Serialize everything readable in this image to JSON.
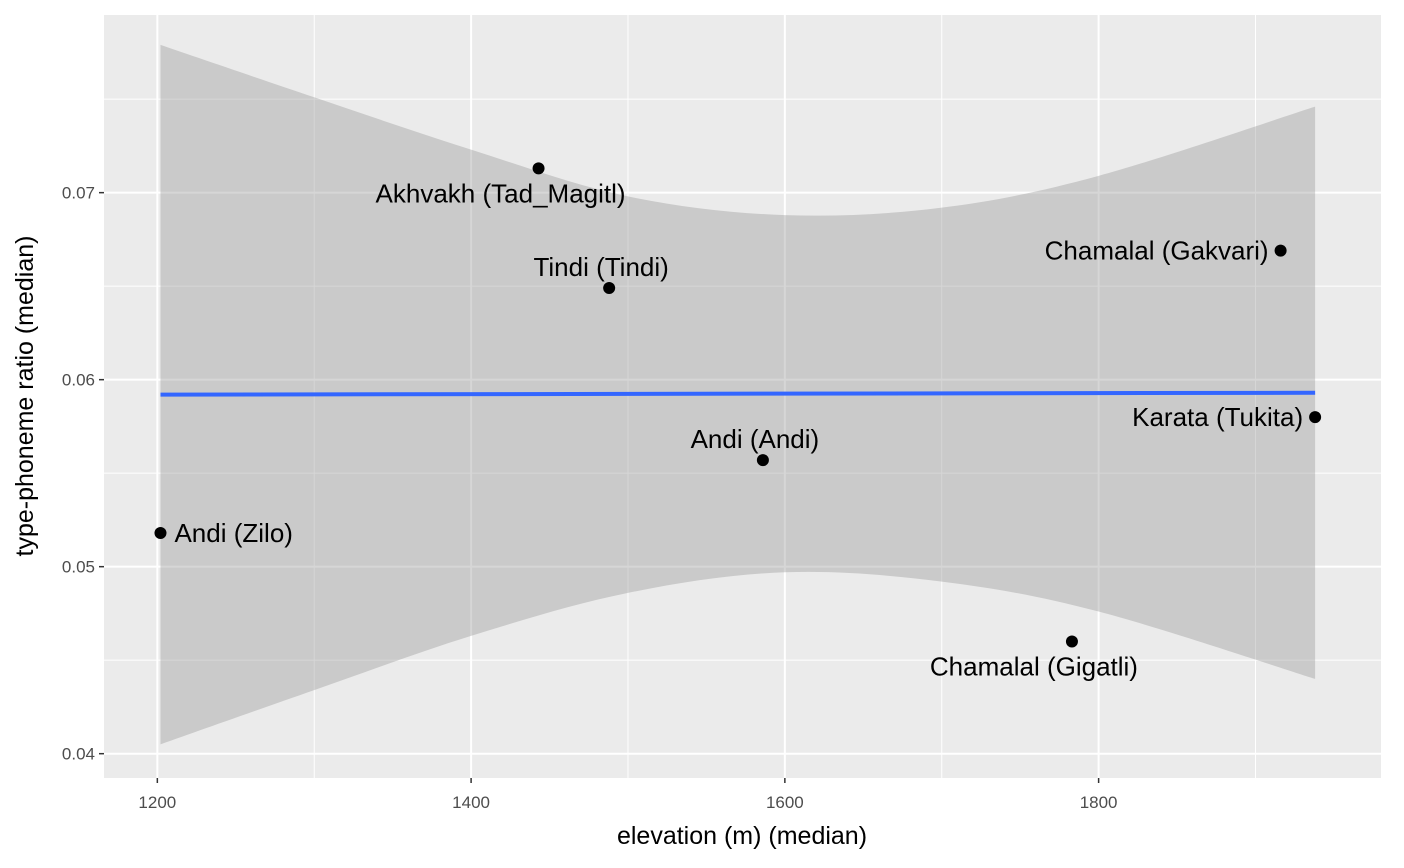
{
  "chart_data": {
    "type": "scatter",
    "xlabel": "elevation (m) (median)",
    "ylabel": "type-phoneme ratio (median)",
    "xlim": [
      1166,
      1980
    ],
    "ylim": [
      0.0387,
      0.0795
    ],
    "x_ticks": [
      1200,
      1400,
      1600,
      1800
    ],
    "y_ticks": [
      0.04,
      0.05,
      0.06,
      0.07
    ],
    "x_tick_labels": [
      "1200",
      "1400",
      "1600",
      "1800"
    ],
    "y_tick_labels": [
      "0.04",
      "0.05",
      "0.06",
      "0.07"
    ],
    "grid": true,
    "points": [
      {
        "label": "Andi (Zilo)",
        "x": 1202,
        "y": 0.0518,
        "label_pos": "right"
      },
      {
        "label": "Akhvakh (Tad_Magitl)",
        "x": 1443,
        "y": 0.0713,
        "label_pos": "below-left"
      },
      {
        "label": "Tindi (Tindi)",
        "x": 1488,
        "y": 0.0649,
        "label_pos": "above"
      },
      {
        "label": "Andi (Andi)",
        "x": 1586,
        "y": 0.0557,
        "label_pos": "above"
      },
      {
        "label": "Chamalal (Gigatli)",
        "x": 1783,
        "y": 0.046,
        "label_pos": "below-left"
      },
      {
        "label": "Chamalal (Gakvari)",
        "x": 1916,
        "y": 0.0669,
        "label_pos": "left"
      },
      {
        "label": "Karata (Tukita)",
        "x": 1938,
        "y": 0.058,
        "label_pos": "left"
      }
    ],
    "fit_line": {
      "method": "linear",
      "x": [
        1202,
        1938
      ],
      "y": [
        0.0592,
        0.0593
      ],
      "color": "#3366FF"
    },
    "confidence_band": {
      "x": [
        1202,
        1300,
        1400,
        1500,
        1600,
        1700,
        1800,
        1938
      ],
      "upper": [
        0.0779,
        0.0751,
        0.0723,
        0.0698,
        0.0688,
        0.0692,
        0.0709,
        0.0746
      ],
      "lower": [
        0.0405,
        0.0434,
        0.0463,
        0.0486,
        0.0497,
        0.0492,
        0.0476,
        0.044
      ]
    }
  }
}
